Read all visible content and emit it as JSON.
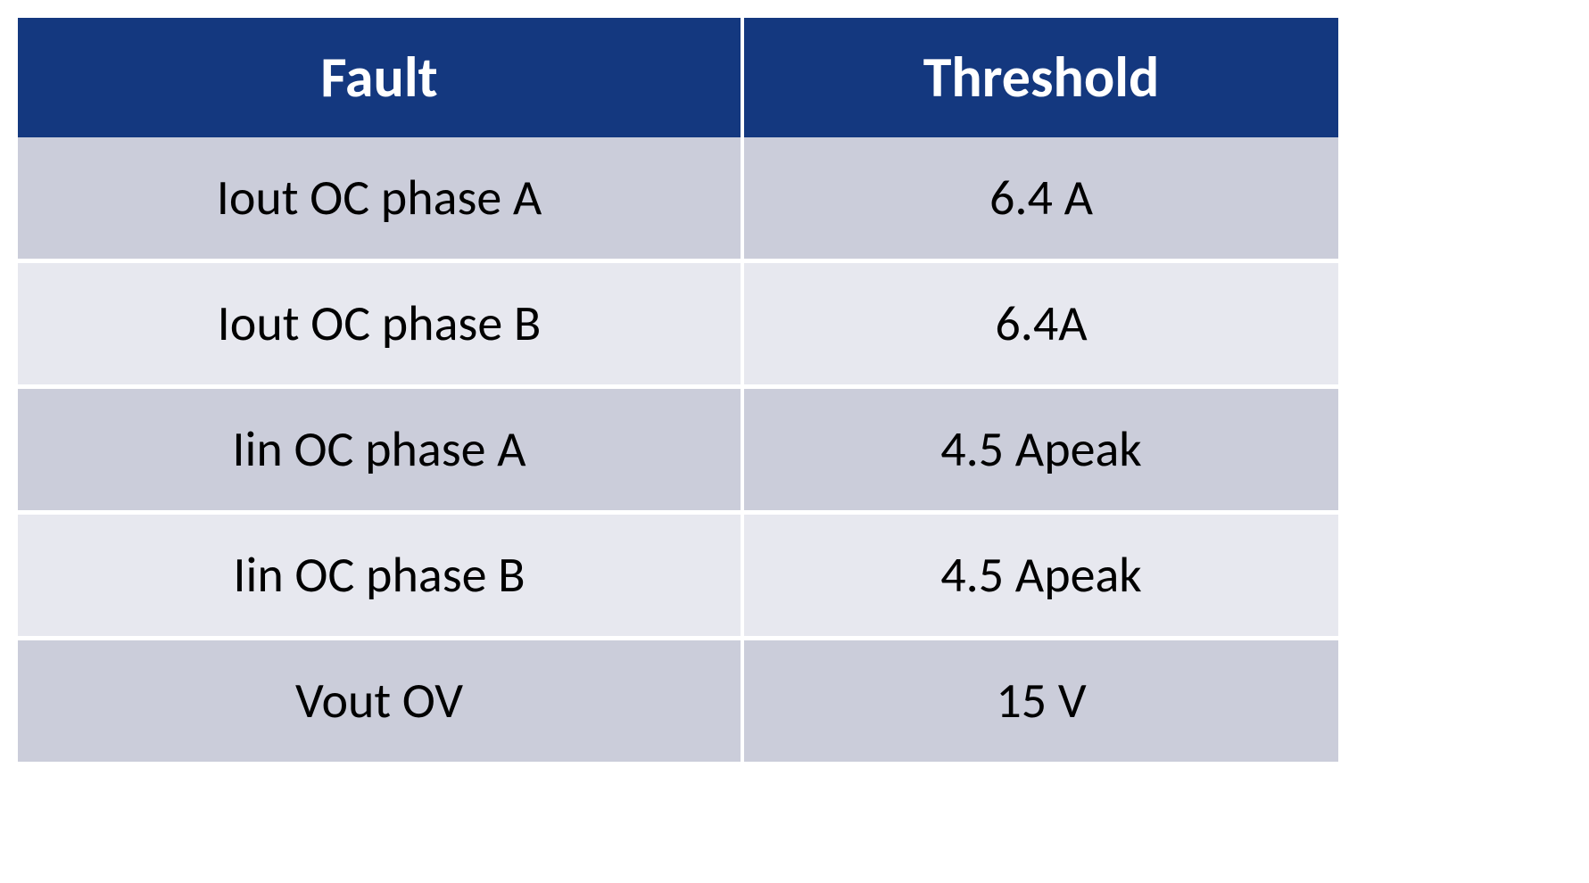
{
  "table": {
    "columns": [
      "Fault",
      "Threshold"
    ],
    "rows": [
      [
        "Iout OC phase A",
        "6.4 A"
      ],
      [
        "Iout OC phase B",
        "6.4A"
      ],
      [
        "Iin OC phase A",
        "4.5 Apeak"
      ],
      [
        "Iin OC phase B",
        "4.5 Apeak"
      ],
      [
        "Vout OV",
        "15 V"
      ]
    ],
    "header_background": "#14387f",
    "header_text_color": "#ffffff",
    "header_fontsize": 64,
    "header_fontweight": "bold",
    "row_odd_background": "#cbcdda",
    "row_even_background": "#e7e8ef",
    "cell_text_color": "#000000",
    "cell_fontsize": 56,
    "border_color": "#ffffff",
    "border_width": 4,
    "col_widths": [
      "55%",
      "45%"
    ]
  }
}
